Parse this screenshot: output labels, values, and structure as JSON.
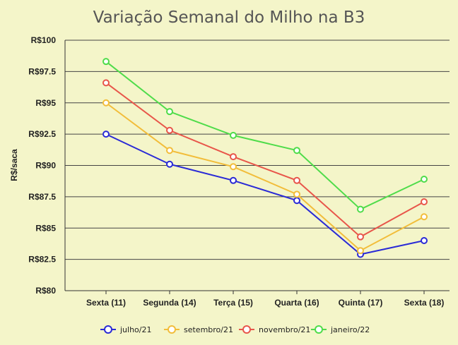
{
  "chart_data": {
    "type": "line",
    "title": "Variação Semanal do Milho na B3",
    "xlabel": "",
    "ylabel": "R$/saca",
    "categories": [
      "Sexta (11)",
      "Segunda (14)",
      "Terça (15)",
      "Quarta (16)",
      "Quinta (17)",
      "Sexta (18)"
    ],
    "ylim": [
      80,
      100
    ],
    "yticks": [
      80,
      82.5,
      85,
      87.5,
      90,
      92.5,
      95,
      97.5,
      100
    ],
    "ytick_labels": [
      "R$80",
      "R$82.5",
      "R$85",
      "R$87.5",
      "R$90",
      "R$92.5",
      "R$95",
      "R$97.5",
      "R$100"
    ],
    "grid": true,
    "legend_position": "bottom",
    "series": [
      {
        "name": "julho/21",
        "color": "#2a2ad6",
        "values": [
          92.5,
          90.1,
          88.8,
          87.2,
          82.9,
          84.0
        ]
      },
      {
        "name": "setembro/21",
        "color": "#f2bd3a",
        "values": [
          95.0,
          91.2,
          89.9,
          87.7,
          83.2,
          85.9
        ]
      },
      {
        "name": "novembro/21",
        "color": "#e8564a",
        "values": [
          96.6,
          92.8,
          90.7,
          88.8,
          84.3,
          87.1
        ]
      },
      {
        "name": "janeiro/22",
        "color": "#4fdc4a",
        "values": [
          98.3,
          94.3,
          92.4,
          91.2,
          86.5,
          88.9
        ]
      }
    ]
  }
}
